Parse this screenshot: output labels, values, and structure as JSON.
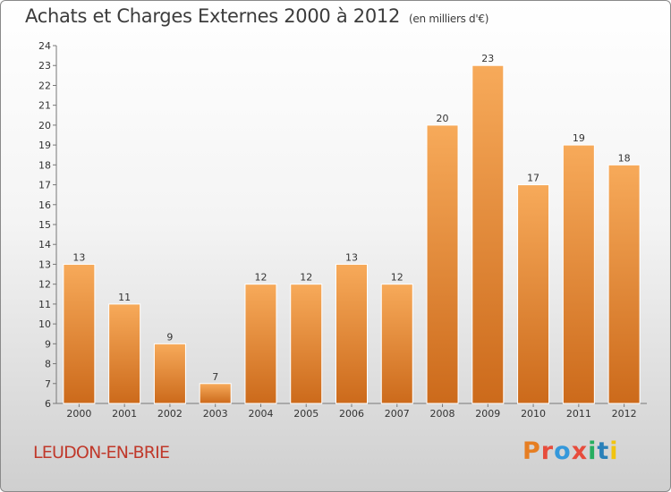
{
  "title": "Achats et Charges Externes 2000 à 2012",
  "unit": "(en milliers d'€)",
  "commune": "LEUDON-EN-BRIE",
  "brand": {
    "logo_text": "Proxiti",
    "colors": [
      "#e67e22",
      "#e74c3c",
      "#3498db",
      "#e74c3c",
      "#27ae60",
      "#2980b9",
      "#f1c40f"
    ]
  },
  "colors": {
    "bar_light": "#f7aa5a",
    "bar_dark": "#cc6a1b",
    "commune": "#c0392b"
  },
  "chart_data": {
    "type": "bar",
    "categories": [
      "2000",
      "2001",
      "2002",
      "2003",
      "2004",
      "2005",
      "2006",
      "2007",
      "2008",
      "2009",
      "2010",
      "2011",
      "2012"
    ],
    "values": [
      13,
      11,
      9,
      7,
      12,
      12,
      13,
      12,
      20,
      23,
      17,
      19,
      18
    ],
    "ylim": [
      6,
      24
    ],
    "yticks": [
      6,
      7,
      8,
      9,
      10,
      11,
      12,
      13,
      14,
      15,
      16,
      17,
      18,
      19,
      20,
      21,
      22,
      23,
      24
    ],
    "grid": false,
    "xlabel": "",
    "ylabel": ""
  }
}
